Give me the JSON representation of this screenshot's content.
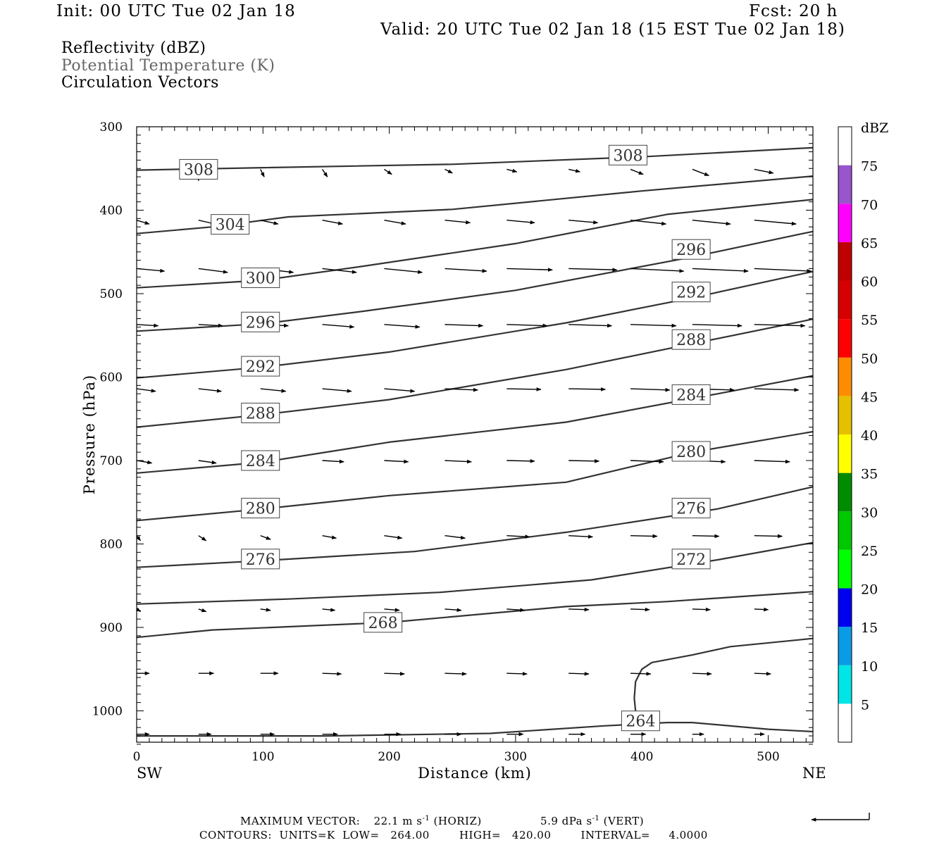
{
  "header": {
    "init": "Init: 00 UTC Tue 02 Jan 18",
    "fcst": "Fcst:   20 h",
    "valid": "Valid: 20 UTC Tue 02 Jan 18 (15 EST Tue 02 Jan 18)",
    "line1": "Reflectivity (dBZ)",
    "line2": "Potential Temperature (K)",
    "line3": "Circulation Vectors"
  },
  "footer": {
    "max_vector_label": "MAXIMUM VECTOR:",
    "horiz_value": "22.1 m s",
    "horiz_exp": "-1",
    "horiz_tag": "(HORIZ)",
    "vert_value": "5.9 dPa s",
    "vert_exp": "-1",
    "vert_tag": "(VERT)",
    "contours": "CONTOURS:  UNITS=K  LOW=   264.00        HIGH=   420.00        INTERVAL=     4.0000"
  },
  "chart_data": {
    "type": "line",
    "xlabel": "Distance (km)",
    "ylabel": "Pressure (hPa)",
    "xlim": [
      0,
      537
    ],
    "ylim": [
      1040,
      300
    ],
    "xticks": [
      0,
      100,
      200,
      300,
      400,
      500
    ],
    "yticks": [
      300,
      400,
      500,
      600,
      700,
      800,
      900,
      1000
    ],
    "x_left_label": "SW",
    "x_right_label": "NE",
    "colorbar": {
      "unit": "dBZ",
      "levels": [
        5,
        10,
        15,
        20,
        25,
        30,
        35,
        40,
        45,
        50,
        55,
        60,
        65,
        70,
        75
      ],
      "colors": [
        "#ffffff",
        "#00e5e5",
        "#0a9be6",
        "#0000f0",
        "#00ff00",
        "#00c800",
        "#008c00",
        "#ffff00",
        "#e6c000",
        "#ff8c00",
        "#ff0000",
        "#d60000",
        "#c00000",
        "#ff00ff",
        "#9955cc",
        "#ffffff"
      ]
    },
    "contour_color": "#333333",
    "theta_labels": [
      {
        "text": "308",
        "x": 49,
        "p": 351
      },
      {
        "text": "308",
        "x": 389,
        "p": 334
      },
      {
        "text": "304",
        "x": 74,
        "p": 417
      },
      {
        "text": "300",
        "x": 98,
        "p": 481
      },
      {
        "text": "296",
        "x": 439,
        "p": 447
      },
      {
        "text": "296",
        "x": 98,
        "p": 534
      },
      {
        "text": "292",
        "x": 439,
        "p": 498
      },
      {
        "text": "292",
        "x": 98,
        "p": 587
      },
      {
        "text": "288",
        "x": 439,
        "p": 555
      },
      {
        "text": "288",
        "x": 98,
        "p": 643
      },
      {
        "text": "284",
        "x": 439,
        "p": 621
      },
      {
        "text": "284",
        "x": 98,
        "p": 700
      },
      {
        "text": "280",
        "x": 439,
        "p": 689
      },
      {
        "text": "280",
        "x": 98,
        "p": 757
      },
      {
        "text": "276",
        "x": 439,
        "p": 757
      },
      {
        "text": "276",
        "x": 98,
        "p": 818
      },
      {
        "text": "272",
        "x": 439,
        "p": 818
      },
      {
        "text": "268",
        "x": 195,
        "p": 894
      },
      {
        "text": "264",
        "x": 399,
        "p": 1012
      }
    ],
    "contours": [
      [
        [
          0,
          352
        ],
        [
          100,
          349
        ],
        [
          250,
          345
        ],
        [
          400,
          336
        ],
        [
          537,
          325
        ]
      ],
      [
        [
          0,
          428
        ],
        [
          60,
          420
        ],
        [
          120,
          408
        ],
        [
          250,
          399
        ],
        [
          400,
          377
        ],
        [
          537,
          359
        ]
      ],
      [
        [
          0,
          493
        ],
        [
          100,
          484
        ],
        [
          180,
          467
        ],
        [
          300,
          440
        ],
        [
          420,
          405
        ],
        [
          537,
          387
        ]
      ],
      [
        [
          0,
          545
        ],
        [
          100,
          536
        ],
        [
          180,
          521
        ],
        [
          300,
          496
        ],
        [
          440,
          456
        ],
        [
          537,
          425
        ]
      ],
      [
        [
          0,
          601
        ],
        [
          100,
          588
        ],
        [
          200,
          570
        ],
        [
          340,
          535
        ],
        [
          440,
          505
        ],
        [
          537,
          473
        ]
      ],
      [
        [
          0,
          660
        ],
        [
          100,
          645
        ],
        [
          200,
          627
        ],
        [
          340,
          591
        ],
        [
          440,
          560
        ],
        [
          537,
          530
        ]
      ],
      [
        [
          0,
          715
        ],
        [
          100,
          702
        ],
        [
          200,
          678
        ],
        [
          340,
          654
        ],
        [
          460,
          620
        ],
        [
          537,
          598
        ]
      ],
      [
        [
          0,
          772
        ],
        [
          100,
          758
        ],
        [
          200,
          742
        ],
        [
          340,
          726
        ],
        [
          440,
          690
        ],
        [
          537,
          665
        ]
      ],
      [
        [
          0,
          828
        ],
        [
          100,
          820
        ],
        [
          220,
          809
        ],
        [
          340,
          786
        ],
        [
          460,
          758
        ],
        [
          537,
          731
        ]
      ],
      [
        [
          0,
          872
        ],
        [
          120,
          866
        ],
        [
          240,
          858
        ],
        [
          360,
          843
        ],
        [
          460,
          819
        ],
        [
          537,
          798
        ]
      ],
      [
        [
          0,
          912
        ],
        [
          60,
          903
        ],
        [
          200,
          894
        ],
        [
          340,
          875
        ],
        [
          420,
          869
        ],
        [
          537,
          857
        ]
      ],
      [
        [
          0,
          1030
        ],
        [
          150,
          1030
        ],
        [
          280,
          1027
        ],
        [
          370,
          1018
        ],
        [
          420,
          1014
        ],
        [
          440,
          1014
        ],
        [
          500,
          1022
        ],
        [
          537,
          1025
        ]
      ],
      [
        [
          395,
          1000
        ],
        [
          394,
          985
        ],
        [
          395,
          965
        ],
        [
          400,
          950
        ],
        [
          408,
          942
        ],
        [
          440,
          933
        ],
        [
          470,
          923
        ],
        [
          537,
          913
        ]
      ]
    ],
    "vector_rows": [
      {
        "p": 351,
        "x": [
          0,
          49,
          98,
          147,
          196,
          244,
          293,
          342,
          391,
          440,
          489
        ],
        "dx": [
          0,
          0,
          0.3,
          0.4,
          0.6,
          0.6,
          0.8,
          0.9,
          1.0,
          1.3,
          1.5
        ],
        "dy": [
          0,
          0.9,
          0.6,
          0.6,
          0.4,
          0.3,
          0.2,
          0.2,
          0.4,
          0.5,
          0.3
        ]
      },
      {
        "p": 412,
        "x": [
          0,
          49,
          98,
          147,
          196,
          244,
          293,
          342,
          391,
          440,
          489
        ],
        "dx": [
          1.0,
          1.3,
          1.4,
          1.6,
          1.7,
          2.0,
          2.2,
          2.3,
          2.8,
          3.0,
          3.3
        ],
        "dy": [
          0.3,
          0.3,
          0.3,
          0.3,
          0.3,
          0.2,
          0.2,
          0.2,
          0.3,
          0.3,
          0.3
        ]
      },
      {
        "p": 470,
        "x": [
          0,
          49,
          98,
          147,
          196,
          244,
          293,
          342,
          391,
          440,
          489
        ],
        "dx": [
          2.2,
          2.3,
          2.6,
          2.7,
          3.0,
          3.3,
          3.6,
          3.8,
          4.2,
          4.4,
          4.5
        ],
        "dy": [
          0.2,
          0.3,
          0.3,
          0.3,
          0.3,
          0.2,
          0.1,
          0.1,
          0.2,
          0.2,
          0.2
        ]
      },
      {
        "p": 537,
        "x": [
          0,
          49,
          98,
          147,
          196,
          244,
          293,
          342,
          391,
          440,
          489
        ],
        "dx": [
          1.7,
          1.9,
          2.2,
          2.5,
          2.8,
          3.0,
          3.2,
          3.4,
          3.6,
          3.9,
          4.0
        ],
        "dy": [
          0.1,
          0.1,
          0.1,
          0.2,
          0.2,
          0.1,
          0.1,
          0.1,
          0.1,
          0.1,
          0.1
        ]
      },
      {
        "p": 614,
        "x": [
          0,
          49,
          98,
          147,
          196,
          244,
          293,
          342,
          391,
          440,
          489
        ],
        "dx": [
          1.5,
          1.8,
          2.0,
          2.3,
          2.4,
          2.6,
          2.7,
          2.9,
          3.1,
          3.3,
          3.5
        ],
        "dy": [
          0.2,
          0.2,
          0.2,
          0.2,
          0.2,
          0.1,
          0.05,
          0.05,
          0.1,
          0.1,
          0.1
        ]
      },
      {
        "p": 700,
        "x": [
          0,
          49,
          98,
          147,
          196,
          244,
          293,
          342,
          391,
          440,
          489
        ],
        "dx": [
          1.2,
          1.4,
          1.5,
          1.7,
          1.9,
          2.1,
          2.2,
          2.4,
          2.6,
          2.6,
          2.8
        ],
        "dy": [
          0.2,
          0.2,
          0.1,
          0.1,
          0.1,
          0.1,
          0.05,
          0.05,
          0.1,
          0.1,
          0.1
        ]
      },
      {
        "p": 790,
        "x": [
          0,
          49,
          98,
          147,
          196,
          244,
          293,
          342,
          391,
          440,
          489
        ],
        "dx": [
          0.3,
          0.6,
          0.8,
          1.1,
          1.4,
          1.6,
          1.8,
          1.9,
          2.1,
          2.1,
          2.2
        ],
        "dy": [
          0.4,
          0.4,
          0.3,
          0.2,
          0.2,
          0.2,
          0.1,
          0.1,
          0.05,
          0.05,
          0.05
        ]
      },
      {
        "p": 878,
        "x": [
          0,
          49,
          98,
          147,
          196,
          244,
          293,
          342,
          391,
          440,
          489
        ],
        "dx": [
          0.3,
          0.6,
          0.8,
          1.0,
          1.2,
          1.3,
          1.4,
          1.6,
          1.5,
          1.4,
          1.1
        ],
        "dy": [
          0.2,
          0.2,
          0.1,
          0.1,
          0.1,
          0.1,
          0.1,
          0.05,
          0.05,
          0.05,
          0.05
        ]
      },
      {
        "p": 955,
        "x": [
          0,
          49,
          98,
          147,
          196,
          244,
          293,
          342,
          391,
          440,
          489
        ],
        "dx": [
          1.0,
          1.2,
          1.4,
          1.5,
          1.6,
          1.7,
          1.6,
          1.6,
          1.6,
          1.5,
          1.3
        ],
        "dy": [
          0,
          0,
          0,
          0.05,
          0.05,
          0.05,
          0.05,
          0.05,
          0.05,
          0.05,
          0.05
        ]
      },
      {
        "p": 1028,
        "x": [
          0,
          49,
          98,
          147,
          196,
          244,
          293,
          342,
          391,
          440,
          489
        ],
        "dx": [
          1.0,
          1.0,
          1.1,
          1.2,
          1.3,
          1.3,
          1.3,
          1.3,
          1.2,
          0.9,
          0.8
        ],
        "dy": [
          0,
          0,
          0,
          0,
          0,
          0,
          0,
          0,
          0,
          0,
          0
        ]
      }
    ]
  }
}
